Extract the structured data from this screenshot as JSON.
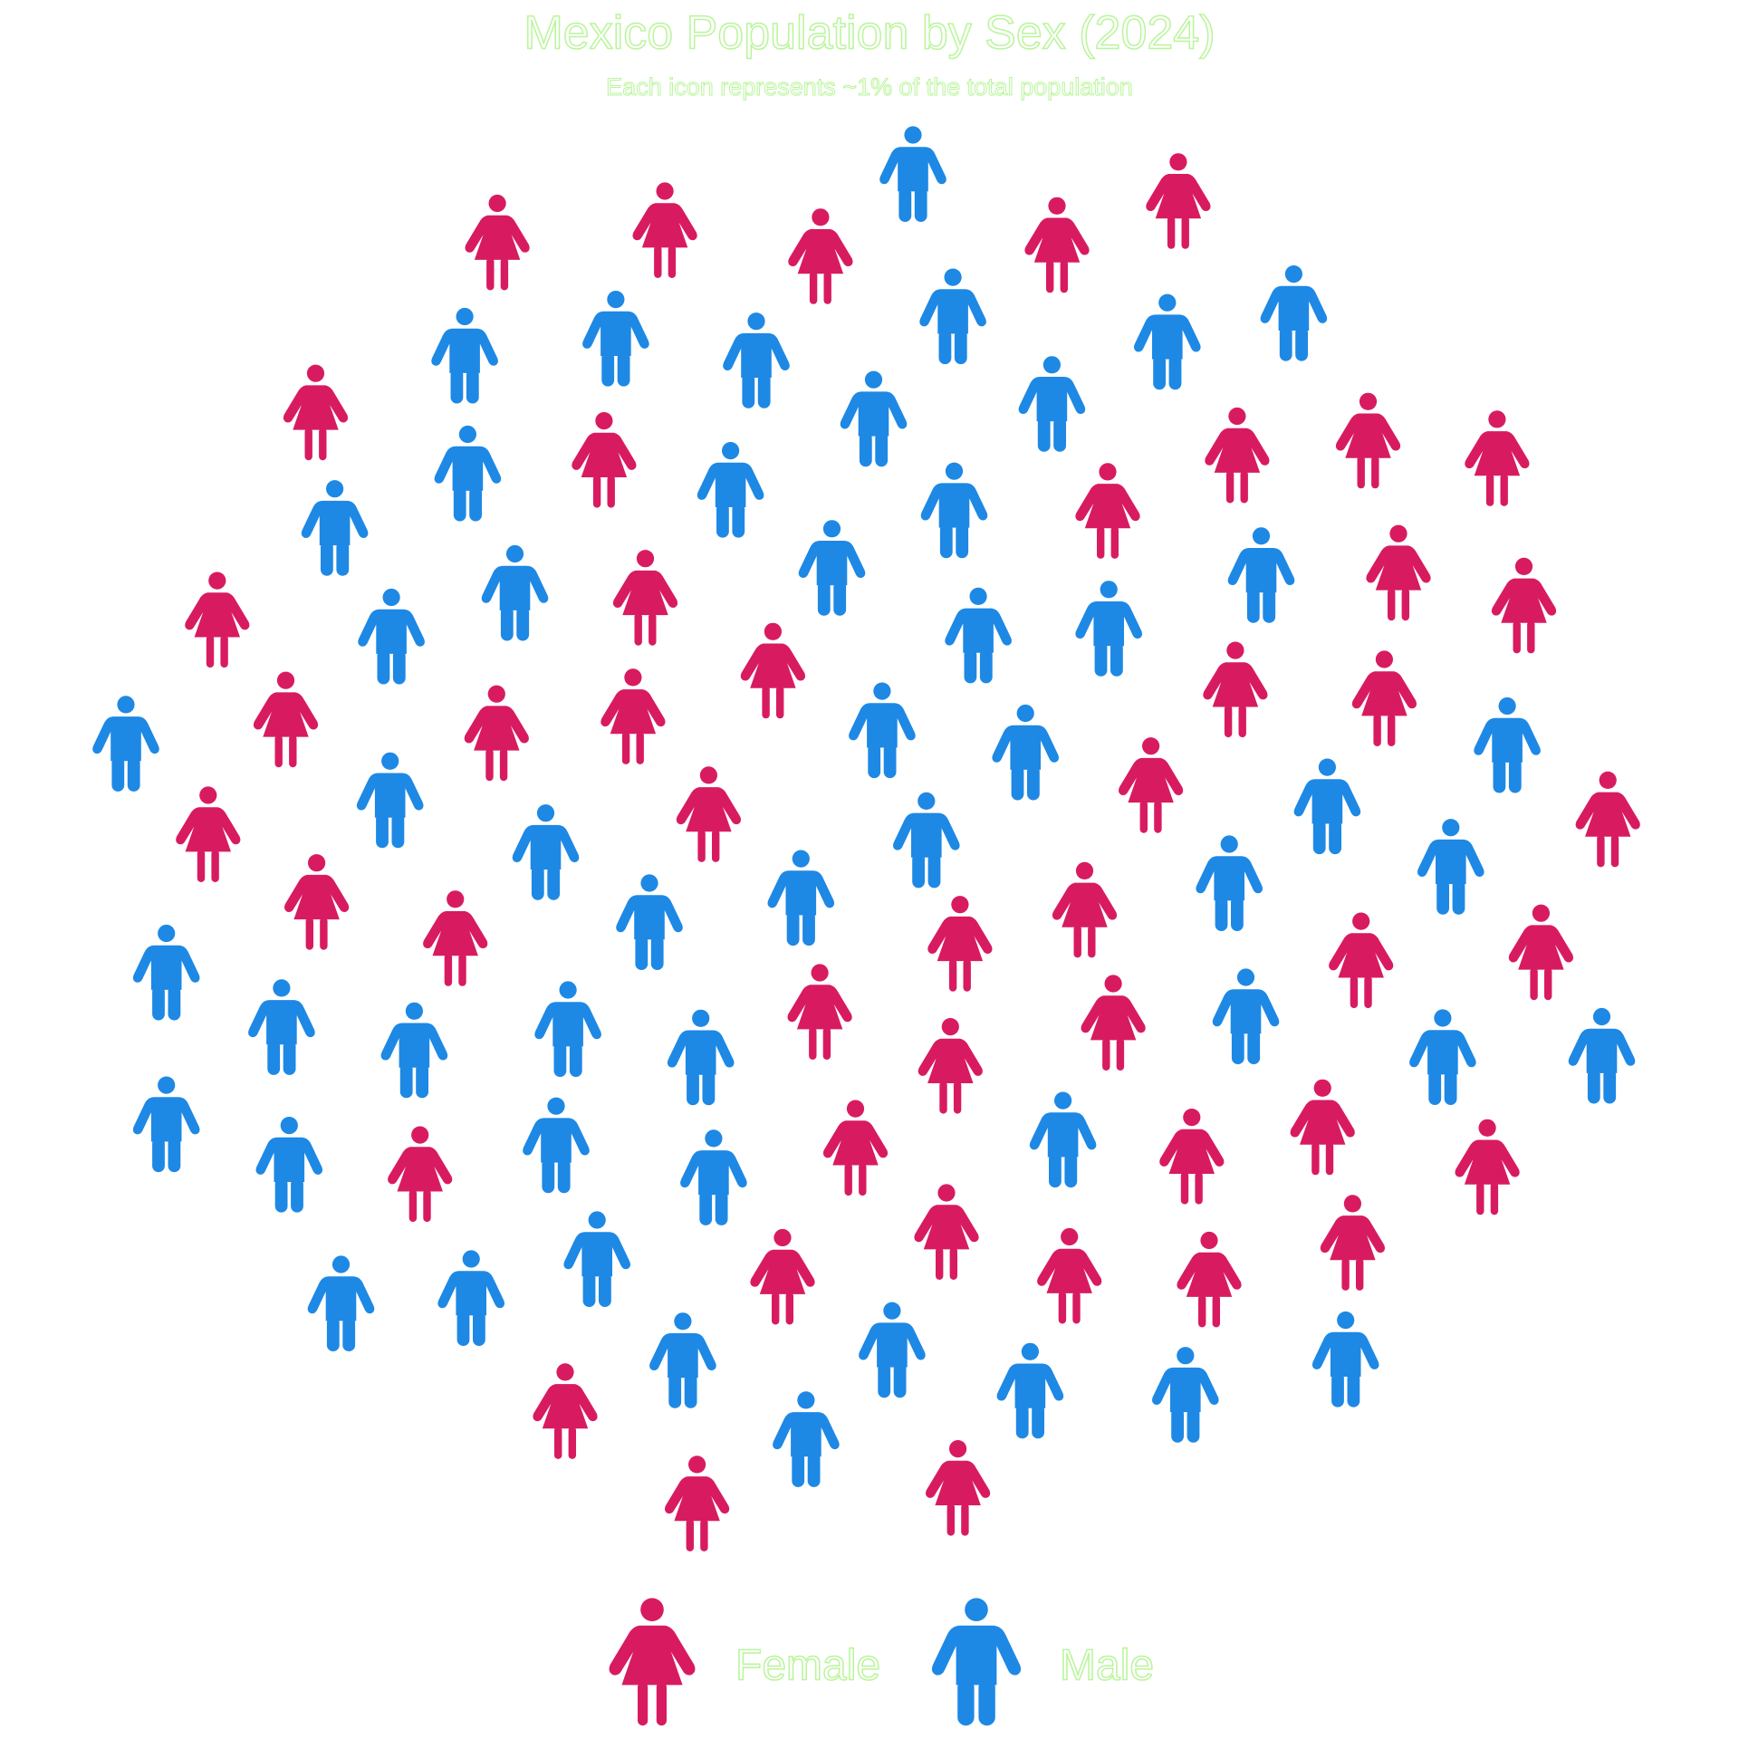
{
  "chart_data": {
    "type": "pictogram",
    "title": "Mexico Population by Sex (2024)",
    "subtitle": "Each icon represents ~1% of the total population",
    "series": [
      {
        "name": "Female",
        "color": "#d81b60",
        "value": 47
      },
      {
        "name": "Male",
        "color": "#1e88e5",
        "value": 53
      }
    ],
    "legend": "bottom"
  }
}
